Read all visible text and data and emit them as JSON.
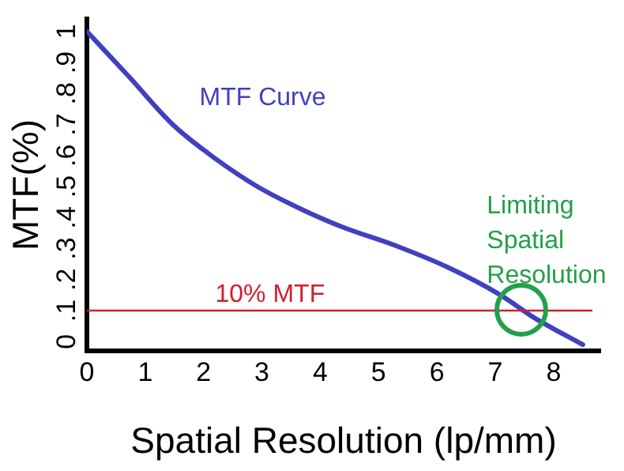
{
  "chart_data": {
    "type": "line",
    "xlabel": "Spatial Resolution (lp/mm)",
    "ylabel": "MTF(%)",
    "x": [
      0,
      0.74,
      1.47,
      2.2,
      2.92,
      3.64,
      4.37,
      5.28,
      6.18,
      7.09,
      7.64,
      8.5
    ],
    "series": [
      {
        "name": "MTF Curve",
        "color": "#4040c0",
        "values": [
          1.0,
          0.85,
          0.7,
          0.59,
          0.5,
          0.43,
          0.37,
          0.31,
          0.24,
          0.15,
          0.08,
          -0.01
        ]
      }
    ],
    "xlim": [
      0,
      8.8
    ],
    "xticks": [
      0,
      1,
      2,
      3,
      4,
      5,
      6,
      7,
      8
    ],
    "ylim": [
      -0.03,
      1.04
    ],
    "yticks": [
      {
        "value": 0,
        "label": "0"
      },
      {
        "value": 0.1,
        "label": ".1"
      },
      {
        "value": 0.2,
        "label": ".2"
      },
      {
        "value": 0.3,
        "label": ".3"
      },
      {
        "value": 0.4,
        "label": ".4"
      },
      {
        "value": 0.5,
        "label": ".5"
      },
      {
        "value": 0.6,
        "label": ".6"
      },
      {
        "value": 0.7,
        "label": ".7"
      },
      {
        "value": 0.8,
        "label": ".8"
      },
      {
        "value": 0.9,
        "label": ".9"
      },
      {
        "value": 1,
        "label": "1"
      }
    ],
    "ref_lines": [
      {
        "axis": "y",
        "value": 0.1,
        "label": "10% MTF",
        "color": "#d0202a"
      }
    ],
    "annotations": [
      {
        "text": "Limiting Spatial Resolution",
        "x": 7.45,
        "y": 0.1
      }
    ],
    "grid": false,
    "legend": false,
    "marker": "none",
    "line_style": "solid"
  }
}
